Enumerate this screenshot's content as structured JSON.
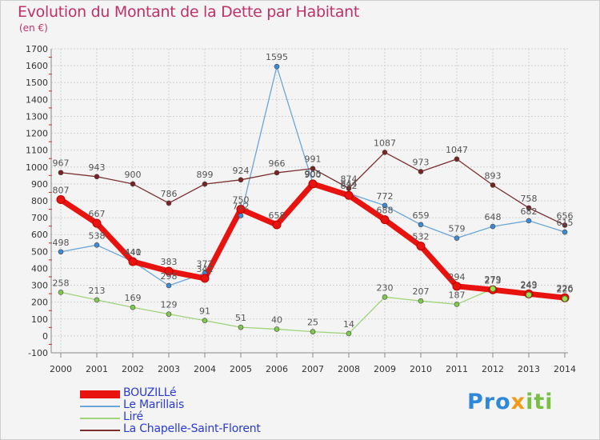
{
  "title": "Evolution du Montant de la Dette par Habitant",
  "subtitle": "(en €)",
  "brand": {
    "logo_parts": [
      {
        "text": "Pro",
        "class": "l1"
      },
      {
        "text": "x",
        "class": "l2"
      },
      {
        "text": "iti",
        "class": "l3"
      }
    ]
  },
  "colors": {
    "grid": "#d0d0d0",
    "tick_red": "#e01010",
    "axis_text": "#333333",
    "label_text": "#555555"
  },
  "chart_data": {
    "type": "line",
    "title": "Evolution du Montant de la Dette par Habitant",
    "ylabel": "(en €)",
    "xlabel": "",
    "ylim": [
      -100,
      1700
    ],
    "yticks": [
      -100,
      0,
      100,
      200,
      300,
      400,
      500,
      600,
      700,
      800,
      900,
      1000,
      1100,
      1200,
      1300,
      1400,
      1500,
      1600,
      1700
    ],
    "categories": [
      "2000",
      "2001",
      "2002",
      "2003",
      "2004",
      "2005",
      "2006",
      "2007",
      "2008",
      "2009",
      "2010",
      "2011",
      "2012",
      "2013",
      "2014"
    ],
    "grid": true,
    "legend_position": "bottom-left",
    "series": [
      {
        "name": "BOUZILLé",
        "color": "#e8120f",
        "marker": "#e8120f",
        "width": 7,
        "values": [
          807,
          667,
          440,
          383,
          341,
          750,
          658,
          900,
          832,
          688,
          532,
          294,
          273,
          249,
          226
        ]
      },
      {
        "name": "Le Marillais",
        "color": "#6aa6d8",
        "marker": "#3c8bd6",
        "width": 1.3,
        "values": [
          498,
          538,
          441,
          298,
          372,
          712,
          1595,
          905,
          844,
          772,
          659,
          579,
          648,
          682,
          615
        ]
      },
      {
        "name": "Liré",
        "color": "#9fd47a",
        "marker": "#7fca4c",
        "width": 1.3,
        "values": [
          258,
          213,
          169,
          129,
          91,
          51,
          40,
          25,
          14,
          230,
          207,
          187,
          279,
          243,
          220
        ]
      },
      {
        "name": "La Chapelle-Saint-Florent",
        "color": "#7a2e2e",
        "marker": "#7a2224",
        "width": 1.3,
        "values": [
          967,
          943,
          900,
          786,
          899,
          924,
          966,
          991,
          874,
          1087,
          973,
          1047,
          893,
          758,
          656
        ]
      }
    ]
  }
}
